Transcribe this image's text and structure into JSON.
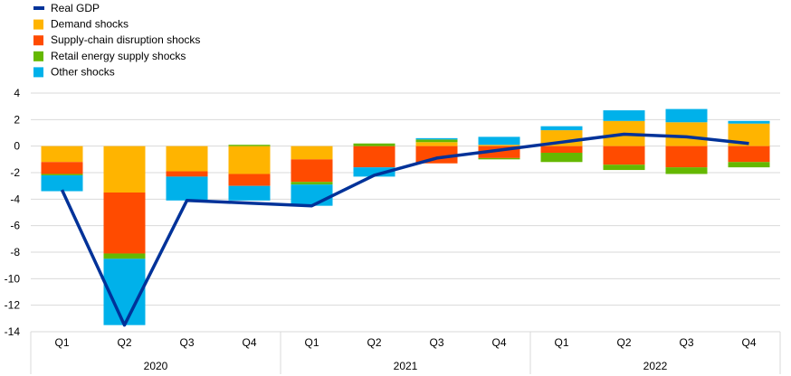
{
  "chart_data": {
    "type": "bar",
    "title": "",
    "xlabel": "",
    "ylabel": "",
    "ylim": [
      -14,
      4
    ],
    "yticks": [
      4,
      2,
      0,
      -2,
      -4,
      -6,
      -8,
      -10,
      -12,
      -14
    ],
    "grid": true,
    "legend_position": "top-left",
    "categories": [
      "Q1",
      "Q2",
      "Q3",
      "Q4",
      "Q1",
      "Q2",
      "Q3",
      "Q4",
      "Q1",
      "Q2",
      "Q3",
      "Q4"
    ],
    "year_groups": [
      {
        "label": "2020",
        "count": 4
      },
      {
        "label": "2021",
        "count": 4
      },
      {
        "label": "2022",
        "count": 4
      }
    ],
    "line": {
      "name": "Real GDP",
      "color": "#003299",
      "values": [
        -3.3,
        -13.5,
        -4.1,
        -4.3,
        -4.5,
        -2.2,
        -0.9,
        -0.3,
        0.3,
        0.9,
        0.7,
        0.2
      ]
    },
    "series": [
      {
        "name": "Demand shocks",
        "color": "#FFB400",
        "values": [
          -1.2,
          -3.5,
          -1.9,
          -2.1,
          -1.0,
          0.0,
          0.3,
          0.1,
          1.2,
          1.9,
          1.8,
          1.7
        ]
      },
      {
        "name": "Supply-chain disruption shocks",
        "color": "#FF4B00",
        "values": [
          -0.9,
          -4.6,
          -0.4,
          -0.9,
          -1.7,
          -1.6,
          -1.3,
          -0.9,
          -0.5,
          -1.4,
          -1.6,
          -1.2
        ]
      },
      {
        "name": "Retail energy supply shocks",
        "color": "#65B800",
        "values": [
          -0.1,
          -0.4,
          0.0,
          0.1,
          -0.2,
          0.2,
          0.2,
          -0.1,
          -0.7,
          -0.4,
          -0.5,
          -0.4
        ]
      },
      {
        "name": "Other shocks",
        "color": "#00B1EA",
        "values": [
          -1.2,
          -5.0,
          -1.8,
          -1.1,
          -1.6,
          -0.7,
          0.1,
          0.6,
          0.3,
          0.8,
          1.0,
          0.2
        ]
      }
    ]
  }
}
